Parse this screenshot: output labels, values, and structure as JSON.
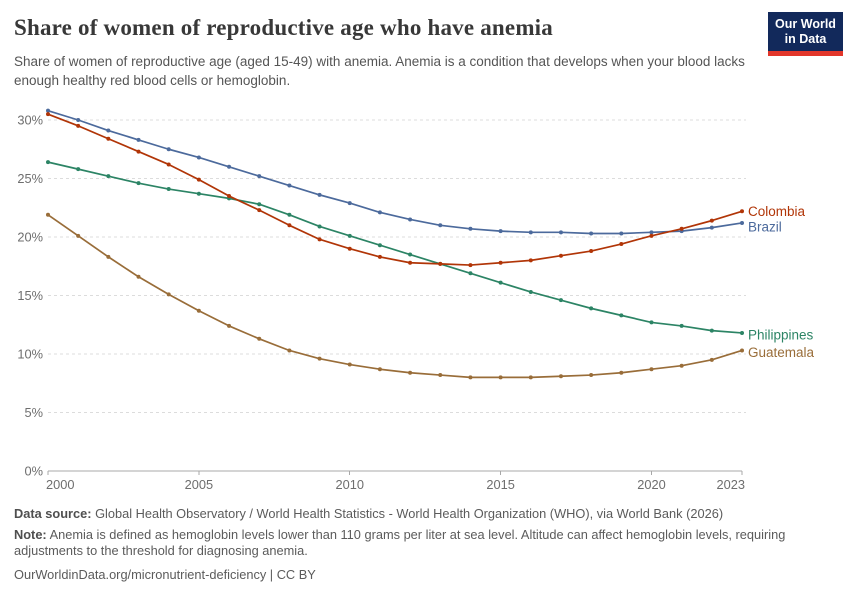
{
  "chart_data": {
    "type": "line",
    "title": "Share of women of reproductive age who have anemia",
    "subtitle": "Share of women of reproductive age (aged 15-49) with anemia. Anemia is a condition that develops when your blood lacks enough healthy red blood cells or hemoglobin.",
    "x": [
      2000,
      2001,
      2002,
      2003,
      2004,
      2005,
      2006,
      2007,
      2008,
      2009,
      2010,
      2011,
      2012,
      2013,
      2014,
      2015,
      2016,
      2017,
      2018,
      2019,
      2020,
      2021,
      2022,
      2023
    ],
    "series": [
      {
        "name": "Colombia",
        "color": "#B13507",
        "label_dy": 0,
        "values": [
          30.5,
          29.5,
          28.4,
          27.3,
          26.2,
          24.9,
          23.5,
          22.3,
          21.0,
          19.8,
          19.0,
          18.3,
          17.8,
          17.7,
          17.6,
          17.8,
          18.0,
          18.4,
          18.8,
          19.4,
          20.1,
          20.7,
          21.4,
          22.2
        ]
      },
      {
        "name": "Brazil",
        "color": "#4C6A9C",
        "label_dy": 4,
        "values": [
          30.8,
          30.0,
          29.1,
          28.3,
          27.5,
          26.8,
          26.0,
          25.2,
          24.4,
          23.6,
          22.9,
          22.1,
          21.5,
          21.0,
          20.7,
          20.5,
          20.4,
          20.4,
          20.3,
          20.3,
          20.4,
          20.5,
          20.8,
          21.2
        ]
      },
      {
        "name": "Philippines",
        "color": "#2C8465",
        "label_dy": 2,
        "values": [
          26.4,
          25.8,
          25.2,
          24.6,
          24.1,
          23.7,
          23.3,
          22.8,
          21.9,
          20.9,
          20.1,
          19.3,
          18.5,
          17.7,
          16.9,
          16.1,
          15.3,
          14.6,
          13.9,
          13.3,
          12.7,
          12.4,
          12.0,
          11.8
        ]
      },
      {
        "name": "Guatemala",
        "color": "#996D39",
        "label_dy": 2,
        "values": [
          21.9,
          20.1,
          18.3,
          16.6,
          15.1,
          13.7,
          12.4,
          11.3,
          10.3,
          9.6,
          9.1,
          8.7,
          8.4,
          8.2,
          8.0,
          8.0,
          8.0,
          8.1,
          8.2,
          8.4,
          8.7,
          9.0,
          9.5,
          10.3
        ]
      }
    ],
    "xticks": [
      2000,
      2005,
      2010,
      2015,
      2020,
      2023
    ],
    "yticks": [
      0,
      5,
      10,
      15,
      20,
      25,
      30
    ],
    "y_tick_suffix": "%",
    "ylim": [
      0,
      31
    ],
    "xlabel": "",
    "ylabel": "",
    "grid": "dashed-horizontal",
    "legend_position": "line-end-labels"
  },
  "header": {
    "logo": {
      "line1": "Our World",
      "line2": "in Data",
      "bg_color": "#12295B",
      "stripe_color": "#E2362A"
    }
  },
  "axis_colors": {
    "tick_label": "#6e6e6e",
    "gridline": "#dcdcdc",
    "axis_line": "#a8a8a8"
  },
  "footer": {
    "data_source_label": "Data source:",
    "data_source_text": "Global Health Observatory / World Health Statistics - World Health Organization (WHO), via World Bank (2026)",
    "note_label": "Note:",
    "note_text": "Anemia is defined as hemoglobin levels lower than 110 grams per liter at sea level. Altitude can affect hemoglobin levels, requiring adjustments to the threshold for diagnosing anemia.",
    "link_text": "OurWorldinData.org/micronutrient-deficiency",
    "divider": " | ",
    "license_text": "CC BY"
  }
}
